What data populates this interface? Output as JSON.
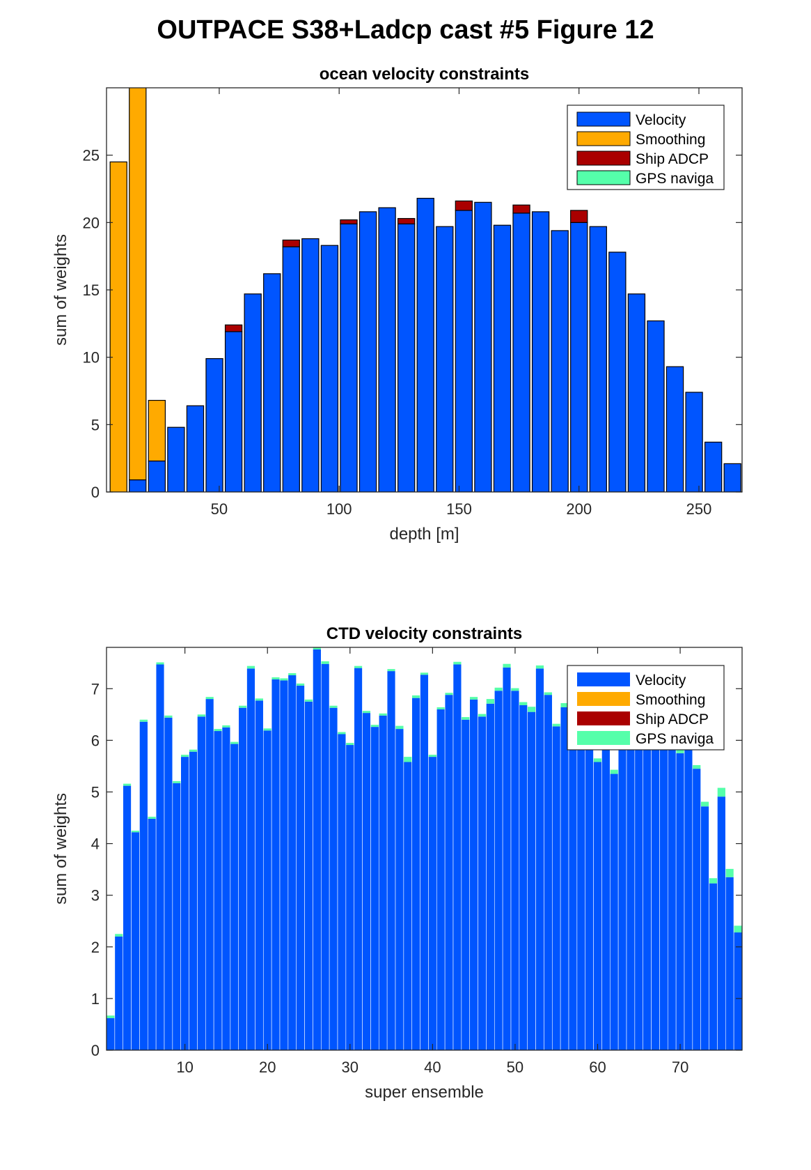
{
  "suptitle": "OUTPACE S38+Ladcp cast #5  Figure 12",
  "colors": {
    "velocity": "#0055ff",
    "smoothing": "#ffaa00",
    "ship_adcp": "#aa0000",
    "gps": "#55ffaa"
  },
  "chart_data": [
    {
      "type": "bar",
      "stacked": true,
      "title": "ocean velocity constraints",
      "xlabel": "depth [m]",
      "ylabel": "sum of weights",
      "xlim": [
        3,
        268
      ],
      "ylim": [
        0,
        30
      ],
      "xticks": [
        50,
        100,
        150,
        200,
        250
      ],
      "yticks": [
        0,
        5,
        10,
        15,
        20,
        25
      ],
      "bar_width": 7,
      "legend": {
        "position": "top-right",
        "entries": [
          "Velocity",
          "Smoothing",
          "Ship ADCP",
          "GPS naviga"
        ]
      },
      "x": [
        8,
        16,
        24,
        32,
        40,
        48,
        56,
        64,
        72,
        80,
        88,
        96,
        104,
        112,
        120,
        128,
        136,
        144,
        152,
        160,
        168,
        176,
        184,
        192,
        200,
        208,
        216,
        224,
        232,
        240,
        248,
        256,
        264
      ],
      "series": [
        {
          "name": "Velocity",
          "colorKey": "velocity",
          "values": [
            0,
            0.9,
            2.3,
            4.8,
            6.4,
            9.9,
            11.9,
            14.7,
            16.2,
            18.2,
            18.8,
            18.3,
            19.9,
            20.8,
            21.1,
            19.9,
            21.8,
            19.7,
            20.9,
            21.5,
            19.8,
            20.7,
            20.8,
            19.4,
            20.0,
            19.7,
            17.8,
            14.7,
            12.7,
            9.3,
            7.4,
            3.7,
            2.1
          ]
        },
        {
          "name": "Smoothing",
          "colorKey": "smoothing",
          "values": [
            24.5,
            29.2,
            4.5,
            0,
            0,
            0,
            0,
            0,
            0,
            0,
            0,
            0,
            0,
            0,
            0,
            0,
            0,
            0,
            0,
            0,
            0,
            0,
            0,
            0,
            0,
            0,
            0,
            0,
            0,
            0,
            0,
            0,
            0
          ]
        },
        {
          "name": "Ship ADCP",
          "colorKey": "ship_adcp",
          "values": [
            0,
            0,
            0,
            0,
            0,
            0,
            0.5,
            0,
            0,
            0.5,
            0,
            0,
            0.3,
            0,
            0,
            0.4,
            0,
            0,
            0.7,
            0,
            0,
            0.6,
            0,
            0,
            0.9,
            0,
            0,
            0,
            0,
            0,
            0,
            0,
            0
          ]
        },
        {
          "name": "GPS naviga",
          "colorKey": "gps",
          "values": [
            0,
            0,
            0,
            0,
            0,
            0,
            0,
            0,
            0,
            0,
            0,
            0,
            0,
            0,
            0,
            0,
            0,
            0,
            0,
            0,
            0,
            0,
            0,
            0,
            0,
            0,
            0,
            0,
            0,
            0,
            0,
            0,
            0
          ]
        }
      ]
    },
    {
      "type": "bar",
      "stacked": true,
      "title": "CTD velocity constraints",
      "xlabel": "super ensemble",
      "ylabel": "sum of weights",
      "xlim": [
        0.5,
        77.5
      ],
      "ylim": [
        0,
        7.8
      ],
      "xticks": [
        10,
        20,
        30,
        40,
        50,
        60,
        70
      ],
      "yticks": [
        0,
        1,
        2,
        3,
        4,
        5,
        6,
        7
      ],
      "bar_width": 0.95,
      "legend": {
        "position": "top-right",
        "entries": [
          "Velocity",
          "Smoothing",
          "Ship ADCP",
          "GPS naviga"
        ]
      },
      "x": [
        1,
        2,
        3,
        4,
        5,
        6,
        7,
        8,
        9,
        10,
        11,
        12,
        13,
        14,
        15,
        16,
        17,
        18,
        19,
        20,
        21,
        22,
        23,
        24,
        25,
        26,
        27,
        28,
        29,
        30,
        31,
        32,
        33,
        34,
        35,
        36,
        37,
        38,
        39,
        40,
        41,
        42,
        43,
        44,
        45,
        46,
        47,
        48,
        49,
        50,
        51,
        52,
        53,
        54,
        55,
        56,
        57,
        58,
        59,
        60,
        61,
        62,
        63,
        64,
        65,
        66,
        67,
        68,
        69,
        70,
        71,
        72,
        73,
        74,
        75,
        76,
        77
      ],
      "series": [
        {
          "name": "Velocity",
          "colorKey": "velocity",
          "values": [
            0.62,
            2.2,
            5.12,
            4.22,
            6.36,
            4.48,
            7.47,
            6.44,
            5.17,
            5.68,
            5.78,
            6.46,
            6.8,
            6.18,
            6.25,
            5.93,
            6.63,
            7.39,
            6.77,
            6.19,
            7.18,
            7.16,
            7.26,
            7.06,
            6.75,
            7.76,
            7.48,
            6.63,
            6.12,
            5.91,
            7.4,
            6.53,
            6.26,
            6.48,
            7.34,
            6.22,
            5.58,
            6.82,
            7.27,
            5.68,
            6.6,
            6.88,
            7.47,
            6.4,
            6.79,
            6.46,
            6.71,
            6.96,
            7.41,
            6.96,
            6.68,
            6.55,
            7.39,
            6.88,
            6.27,
            6.64,
            6.06,
            6.01,
            6.04,
            5.58,
            6.07,
            5.35,
            5.98,
            6.01,
            5.91,
            6.12,
            5.99,
            6.05,
            5.99,
            5.75,
            5.93,
            5.45,
            4.72,
            3.23,
            4.91,
            3.35,
            2.28
          ]
        },
        {
          "name": "Smoothing",
          "colorKey": "smoothing",
          "values": [
            0,
            0,
            0,
            0,
            0,
            0,
            0,
            0,
            0,
            0,
            0,
            0,
            0,
            0,
            0,
            0,
            0,
            0,
            0,
            0,
            0,
            0,
            0,
            0,
            0,
            0,
            0,
            0,
            0,
            0,
            0,
            0,
            0,
            0,
            0,
            0,
            0,
            0,
            0,
            0,
            0,
            0,
            0,
            0,
            0,
            0,
            0,
            0,
            0,
            0,
            0,
            0,
            0,
            0,
            0,
            0,
            0,
            0,
            0,
            0,
            0,
            0,
            0,
            0,
            0,
            0,
            0,
            0,
            0,
            0,
            0,
            0,
            0,
            0,
            0,
            0,
            0
          ]
        },
        {
          "name": "Ship ADCP",
          "colorKey": "ship_adcp",
          "values": [
            0,
            0,
            0,
            0,
            0,
            0,
            0,
            0,
            0,
            0,
            0,
            0,
            0,
            0,
            0,
            0,
            0,
            0,
            0,
            0,
            0,
            0,
            0,
            0,
            0,
            0,
            0,
            0,
            0,
            0,
            0,
            0,
            0,
            0,
            0,
            0,
            0,
            0,
            0,
            0,
            0,
            0,
            0,
            0,
            0,
            0,
            0,
            0,
            0,
            0,
            0,
            0,
            0,
            0,
            0,
            0,
            0,
            0,
            0,
            0,
            0,
            0,
            0,
            0,
            0,
            0,
            0,
            0,
            0,
            0,
            0,
            0,
            0,
            0,
            0,
            0,
            0
          ]
        },
        {
          "name": "GPS naviga",
          "colorKey": "gps",
          "values": [
            0.05,
            0.05,
            0.04,
            0.03,
            0.04,
            0.04,
            0.04,
            0.04,
            0.04,
            0.04,
            0.04,
            0.04,
            0.04,
            0.04,
            0.04,
            0.04,
            0.04,
            0.05,
            0.04,
            0.04,
            0.04,
            0.04,
            0.04,
            0.04,
            0.04,
            0.06,
            0.05,
            0.04,
            0.04,
            0.04,
            0.04,
            0.04,
            0.04,
            0.04,
            0.04,
            0.06,
            0.1,
            0.05,
            0.04,
            0.04,
            0.04,
            0.04,
            0.05,
            0.05,
            0.05,
            0.05,
            0.09,
            0.06,
            0.07,
            0.05,
            0.06,
            0.1,
            0.06,
            0.05,
            0.05,
            0.08,
            0.08,
            0.06,
            0.06,
            0.07,
            0.09,
            0.08,
            0.05,
            0.05,
            0.05,
            0.06,
            0.06,
            0.06,
            0.06,
            0.08,
            0.06,
            0.07,
            0.09,
            0.1,
            0.17,
            0.16,
            0.13
          ]
        }
      ]
    }
  ]
}
